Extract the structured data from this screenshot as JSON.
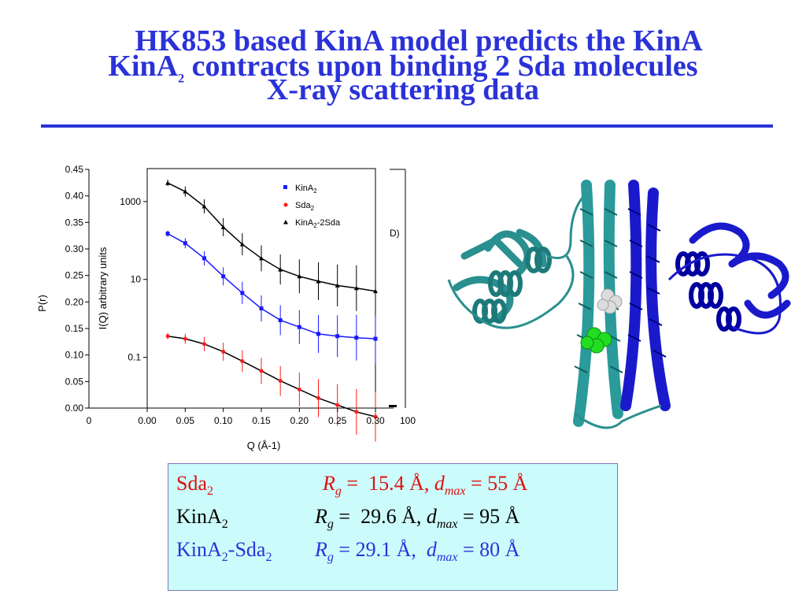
{
  "slide": {
    "title_line1": "HK853 based KinA model predicts the KinA",
    "title_line2": "KinA2 contracts upon binding 2 Sda molecules",
    "title_line3": "X-ray scattering data",
    "colors": {
      "title": "#2a32d8",
      "box_bg": "#ccfbfb",
      "red": "#e01010",
      "blue": "#2a32d8"
    }
  },
  "pr_plot": {
    "ylabel": "P(r)",
    "yticks": [
      "0.45",
      "0.40",
      "0.35",
      "0.30",
      "0.25",
      "0.20",
      "0.15",
      "0.10",
      "0.05",
      "0.00"
    ],
    "xtick_left": "0",
    "xtick_right": "100",
    "partial_label": "D)"
  },
  "chart_data": {
    "type": "scatter",
    "xlabel": "Q (Å-1)",
    "ylabel": "I(Q) arbitrary units",
    "ylog": true,
    "xlim": [
      0.0,
      0.3
    ],
    "ylim": [
      0.005,
      7000
    ],
    "xticks": [
      "0.00",
      "0.05",
      "0.10",
      "0.15",
      "0.20",
      "0.25",
      "0.30"
    ],
    "yticks": [
      "1000",
      "10",
      "0.1"
    ],
    "legend_position": "top-right",
    "series": [
      {
        "name": "KinA2",
        "color": "#1a1aff",
        "marker": "square",
        "x": [
          0.027,
          0.05,
          0.075,
          0.1,
          0.125,
          0.15,
          0.175,
          0.2,
          0.225,
          0.25,
          0.275,
          0.3
        ],
        "y": [
          150,
          85,
          35,
          12,
          4.5,
          1.8,
          0.9,
          0.6,
          0.4,
          0.35,
          0.32,
          0.3
        ]
      },
      {
        "name": "Sda2",
        "color": "#ff1a1a",
        "marker": "circle",
        "x": [
          0.027,
          0.05,
          0.075,
          0.1,
          0.125,
          0.15,
          0.175,
          0.2,
          0.225,
          0.25,
          0.275,
          0.3
        ],
        "y": [
          0.35,
          0.3,
          0.22,
          0.14,
          0.08,
          0.045,
          0.025,
          0.015,
          0.009,
          0.006,
          0.004,
          0.003
        ]
      },
      {
        "name": "KinA2-2Sda",
        "color": "#000000",
        "marker": "triangle",
        "x": [
          0.027,
          0.05,
          0.075,
          0.1,
          0.125,
          0.15,
          0.175,
          0.2,
          0.225,
          0.25,
          0.275,
          0.3
        ],
        "y": [
          3000,
          1800,
          750,
          220,
          80,
          35,
          18,
          12,
          9,
          7,
          6,
          5
        ]
      }
    ],
    "legend": [
      {
        "base": "KinA",
        "sub": "2",
        "tail": ""
      },
      {
        "base": "Sda",
        "sub": "2",
        "tail": ""
      },
      {
        "base": "KinA",
        "sub": "2",
        "tail": "-2Sda"
      }
    ]
  },
  "results": {
    "row1": {
      "name": "Sda",
      "name_sub": "2",
      "rg": "15.4 Å,",
      "dmax": "55 Å"
    },
    "row2": {
      "name": "KinA",
      "name_sub": "2",
      "rg": "29.6 Å,",
      "dmax": "95 Å"
    },
    "row3": {
      "name": "KinA",
      "name_sub": "2",
      "name_tail": "-Sda",
      "name_sub2": "2",
      "rg": "29.1 Å,",
      "dmax": "80 Å"
    },
    "rg_symbol": "R",
    "rg_sub": "g",
    "dmax_symbol": "d",
    "dmax_sub": "max",
    "eq": " = "
  }
}
